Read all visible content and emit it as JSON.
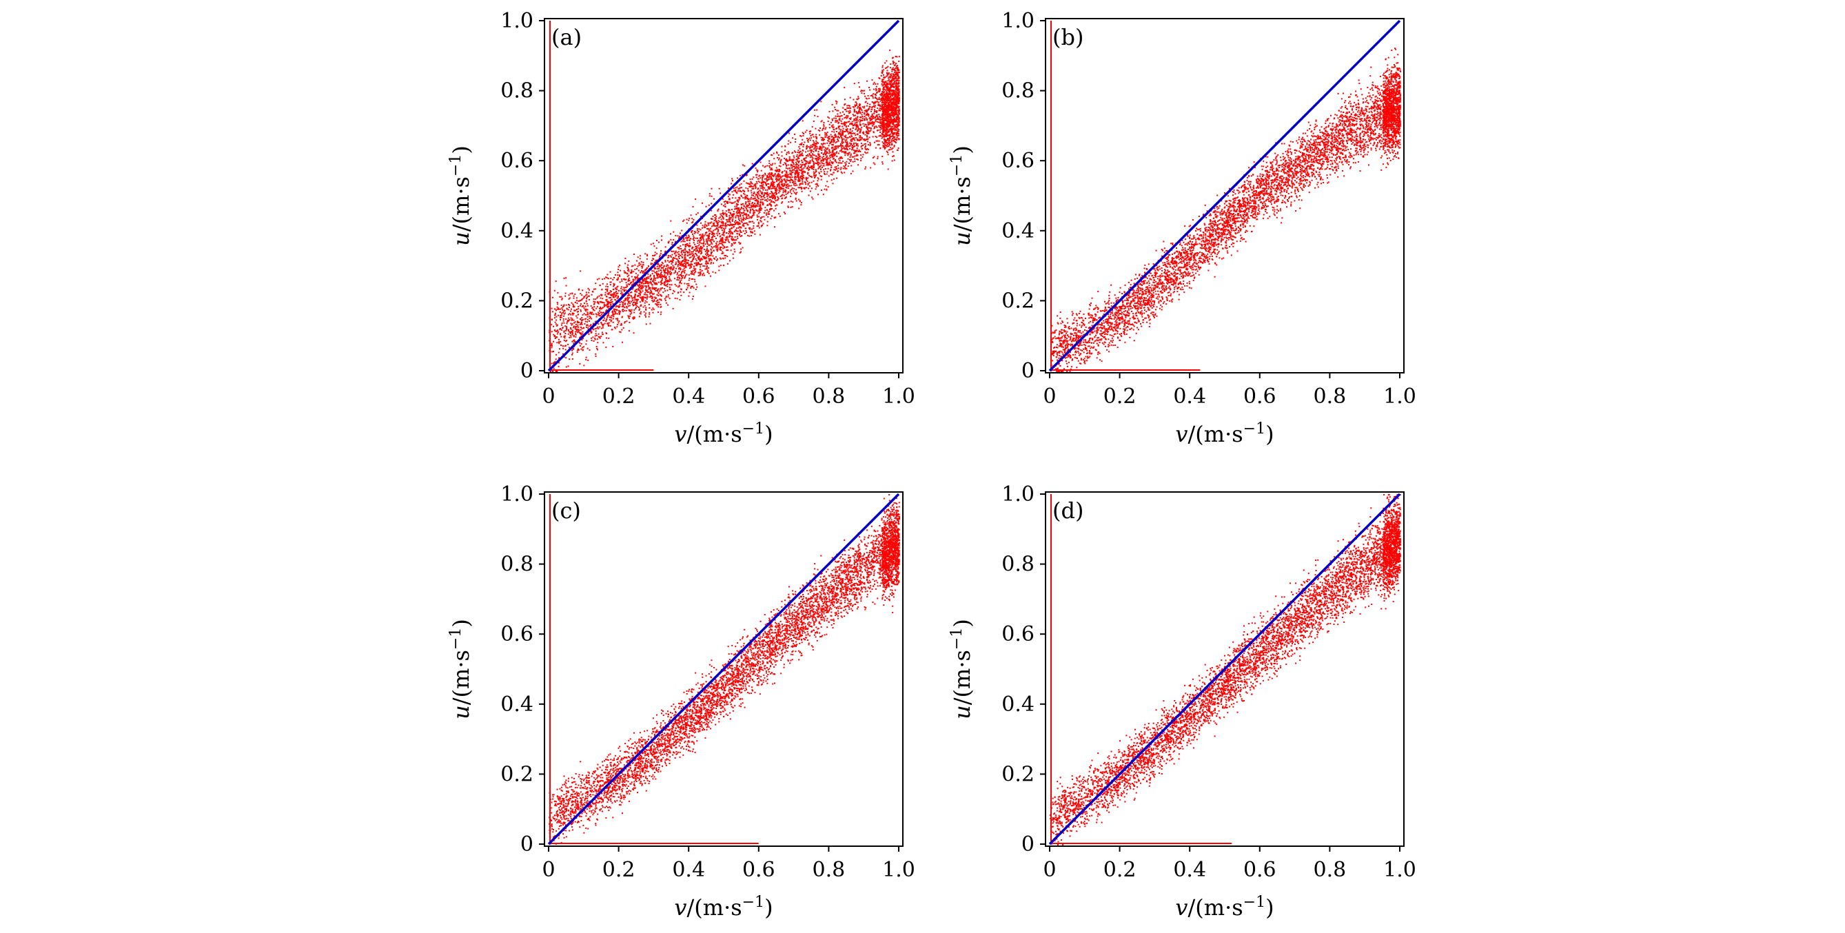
{
  "figure": {
    "panel_count": 4,
    "layout": "2x2 grid",
    "scatter_color": "#ff0000",
    "reference_line_color": "#0000cc"
  },
  "chart_data": [
    {
      "type": "scatter",
      "panel_label": "(a)",
      "xlabel_var": "v",
      "xlabel_unit": "/(m·s",
      "xlabel_exp": "−1",
      "xlabel_close": ")",
      "ylabel_var": "u",
      "ylabel_unit": "/(m·s",
      "ylabel_exp": "−1",
      "ylabel_close": ")",
      "xlim": [
        0,
        1
      ],
      "ylim": [
        0,
        1
      ],
      "xticks": [
        "0",
        "0.2",
        "0.4",
        "0.6",
        "0.8",
        "1.0"
      ],
      "yticks": [
        "0",
        "0.2",
        "0.4",
        "0.6",
        "0.8",
        "1.0"
      ],
      "grid": false,
      "series": [
        {
          "kind": "scatter_band",
          "color": "#ff0000",
          "x": [
            0.0,
            0.1,
            0.2,
            0.3,
            0.4,
            0.5,
            0.6,
            0.7,
            0.8,
            0.9,
            1.0
          ],
          "y_center": [
            0.12,
            0.14,
            0.2,
            0.26,
            0.33,
            0.41,
            0.5,
            0.57,
            0.64,
            0.71,
            0.77
          ],
          "y_spread": [
            0.11,
            0.09,
            0.08,
            0.08,
            0.09,
            0.09,
            0.08,
            0.08,
            0.09,
            0.1,
            0.11
          ],
          "vertical_strip_at_x": 0.0,
          "horizontal_strip_to_x": 0.3
        },
        {
          "kind": "line",
          "color": "#0000cc",
          "x": [
            0,
            1
          ],
          "y": [
            0,
            1
          ]
        }
      ]
    },
    {
      "type": "scatter",
      "panel_label": "(b)",
      "xlabel_var": "v",
      "xlabel_unit": "/(m·s",
      "xlabel_exp": "−1",
      "xlabel_close": ")",
      "ylabel_var": "u",
      "ylabel_unit": "/(m·s",
      "ylabel_exp": "−1",
      "ylabel_close": ")",
      "xlim": [
        0,
        1
      ],
      "ylim": [
        0,
        1
      ],
      "xticks": [
        "0",
        "0.2",
        "0.4",
        "0.6",
        "0.8",
        "1.0"
      ],
      "yticks": [
        "0",
        "0.2",
        "0.4",
        "0.6",
        "0.8",
        "1.0"
      ],
      "grid": false,
      "series": [
        {
          "kind": "scatter_band",
          "color": "#ff0000",
          "x": [
            0.0,
            0.1,
            0.2,
            0.3,
            0.4,
            0.5,
            0.6,
            0.7,
            0.8,
            0.9,
            1.0
          ],
          "y_center": [
            0.06,
            0.1,
            0.16,
            0.24,
            0.33,
            0.42,
            0.51,
            0.58,
            0.65,
            0.71,
            0.76
          ],
          "y_spread": [
            0.07,
            0.07,
            0.07,
            0.07,
            0.07,
            0.07,
            0.07,
            0.08,
            0.08,
            0.09,
            0.1
          ],
          "vertical_strip_at_x": 0.0,
          "horizontal_strip_to_x": 0.43
        },
        {
          "kind": "line",
          "color": "#0000cc",
          "x": [
            0,
            1
          ],
          "y": [
            0,
            1
          ]
        }
      ]
    },
    {
      "type": "scatter",
      "panel_label": "(c)",
      "xlabel_var": "v",
      "xlabel_unit": "/(m·s",
      "xlabel_exp": "−1",
      "xlabel_close": ")",
      "ylabel_var": "u",
      "ylabel_unit": "/(m·s",
      "ylabel_exp": "−1",
      "ylabel_close": ")",
      "xlim": [
        0,
        1
      ],
      "ylim": [
        0,
        1
      ],
      "xticks": [
        "0",
        "0.2",
        "0.4",
        "0.6",
        "0.8",
        "1.0"
      ],
      "yticks": [
        "0",
        "0.2",
        "0.4",
        "0.6",
        "0.8",
        "1.0"
      ],
      "grid": false,
      "series": [
        {
          "kind": "scatter_band",
          "color": "#ff0000",
          "x": [
            0.0,
            0.1,
            0.2,
            0.3,
            0.4,
            0.5,
            0.6,
            0.7,
            0.8,
            0.9,
            1.0
          ],
          "y_center": [
            0.08,
            0.13,
            0.19,
            0.27,
            0.36,
            0.45,
            0.54,
            0.63,
            0.71,
            0.79,
            0.86
          ],
          "y_spread": [
            0.07,
            0.07,
            0.07,
            0.07,
            0.07,
            0.07,
            0.08,
            0.08,
            0.08,
            0.09,
            0.1
          ],
          "vertical_strip_at_x": 0.0,
          "horizontal_strip_to_x": 0.6
        },
        {
          "kind": "line",
          "color": "#0000cc",
          "x": [
            0,
            1
          ],
          "y": [
            0,
            1
          ]
        }
      ]
    },
    {
      "type": "scatter",
      "panel_label": "(d)",
      "xlabel_var": "v",
      "xlabel_unit": "/(m·s",
      "xlabel_exp": "−1",
      "xlabel_close": ")",
      "ylabel_var": "u",
      "ylabel_unit": "/(m·s",
      "ylabel_exp": "−1",
      "ylabel_close": ")",
      "xlim": [
        0,
        1
      ],
      "ylim": [
        0,
        1
      ],
      "xticks": [
        "0",
        "0.2",
        "0.4",
        "0.6",
        "0.8",
        "1.0"
      ],
      "yticks": [
        "0",
        "0.2",
        "0.4",
        "0.6",
        "0.8",
        "1.0"
      ],
      "grid": false,
      "series": [
        {
          "kind": "scatter_band",
          "color": "#ff0000",
          "x": [
            0.0,
            0.1,
            0.2,
            0.3,
            0.4,
            0.5,
            0.6,
            0.7,
            0.8,
            0.9,
            1.0
          ],
          "y_center": [
            0.08,
            0.13,
            0.2,
            0.28,
            0.37,
            0.46,
            0.55,
            0.64,
            0.72,
            0.8,
            0.87
          ],
          "y_spread": [
            0.07,
            0.07,
            0.07,
            0.07,
            0.07,
            0.07,
            0.08,
            0.08,
            0.08,
            0.09,
            0.1
          ],
          "vertical_strip_at_x": 0.0,
          "horizontal_strip_to_x": 0.52
        },
        {
          "kind": "line",
          "color": "#0000cc",
          "x": [
            0,
            1
          ],
          "y": [
            0,
            1
          ]
        }
      ]
    }
  ]
}
